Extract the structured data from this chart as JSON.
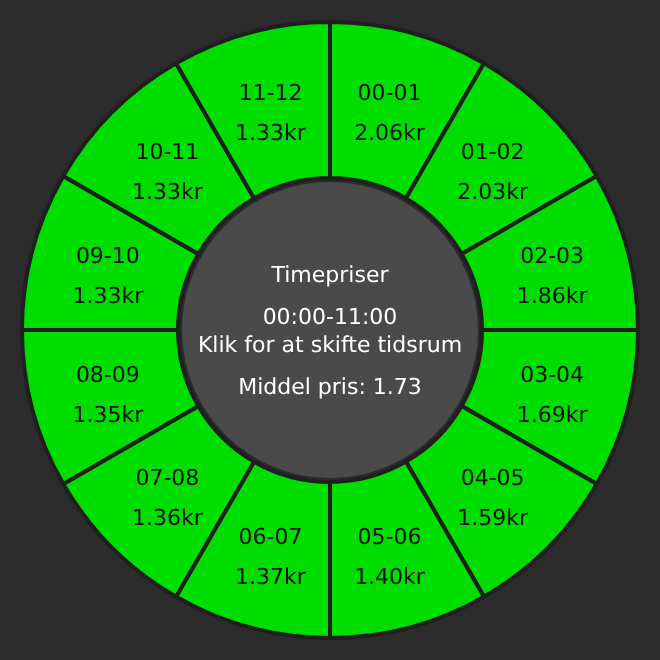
{
  "chart_data": {
    "type": "other",
    "title": "Timepriser",
    "subtitle": "00:00-11:00",
    "categories": [
      "00-01",
      "01-02",
      "02-03",
      "03-04",
      "04-05",
      "05-06",
      "06-07",
      "07-08",
      "08-09",
      "09-10",
      "10-11",
      "11-12"
    ],
    "values": [
      2.06,
      2.03,
      1.86,
      1.69,
      1.59,
      1.4,
      1.37,
      1.36,
      1.35,
      1.33,
      1.33,
      1.33
    ],
    "value_labels": [
      "2.06kr",
      "2.03kr",
      "1.86kr",
      "1.69kr",
      "1.59kr",
      "1.40kr",
      "1.37kr",
      "1.36kr",
      "1.35kr",
      "1.33kr",
      "1.33kr",
      "1.33kr"
    ],
    "colors": [
      "#00dd00",
      "#00dd00",
      "#00dd00",
      "#00dd00",
      "#00dd00",
      "#00dd00",
      "#00dd00",
      "#00dd00",
      "#00dd00",
      "#00dd00",
      "#00dd00",
      "#00dd00"
    ],
    "annotations": [
      "Klik for at skifte tidsrum",
      "Middel pris: 1.73"
    ]
  }
}
